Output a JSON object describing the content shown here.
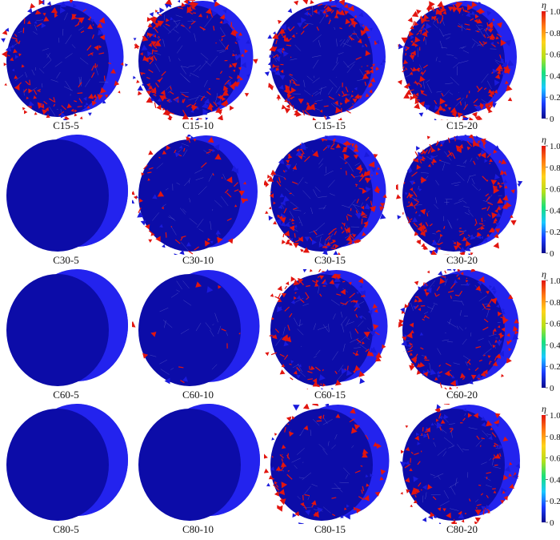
{
  "colors": {
    "particle_blue": "#1a1adb",
    "cylinder_face": "#0c0ca8",
    "cylinder_side": "#2323ee",
    "crack_red": "#e2150f",
    "colorbar": [
      "#0b0b8c",
      "#1a3cff",
      "#19c8ff",
      "#19e07a",
      "#b4e019",
      "#ffd21a",
      "#ff7a12",
      "#e2150f"
    ]
  },
  "colorbar": {
    "symbol": "η",
    "ticks": [
      "1.0",
      "0.8",
      "0.6",
      "0.4",
      "0.2",
      "0"
    ]
  },
  "rows": [
    {
      "panels": [
        {
          "label": "C15-5",
          "damage": 0.55
        },
        {
          "label": "C15-10",
          "damage": 0.85
        },
        {
          "label": "C15-15",
          "damage": 0.8
        },
        {
          "label": "C15-20",
          "damage": 0.9
        }
      ]
    },
    {
      "panels": [
        {
          "label": "C30-5",
          "damage": 0.0
        },
        {
          "label": "C30-10",
          "damage": 0.3
        },
        {
          "label": "C30-15",
          "damage": 0.75
        },
        {
          "label": "C30-20",
          "damage": 0.85
        }
      ]
    },
    {
      "panels": [
        {
          "label": "C60-5",
          "damage": 0.0
        },
        {
          "label": "C60-10",
          "damage": 0.05
        },
        {
          "label": "C60-15",
          "damage": 0.55
        },
        {
          "label": "C60-20",
          "damage": 0.65
        }
      ]
    },
    {
      "panels": [
        {
          "label": "C80-5",
          "damage": 0.0
        },
        {
          "label": "C80-10",
          "damage": 0.0
        },
        {
          "label": "C80-15",
          "damage": 0.35
        },
        {
          "label": "C80-20",
          "damage": 0.5
        }
      ]
    }
  ]
}
